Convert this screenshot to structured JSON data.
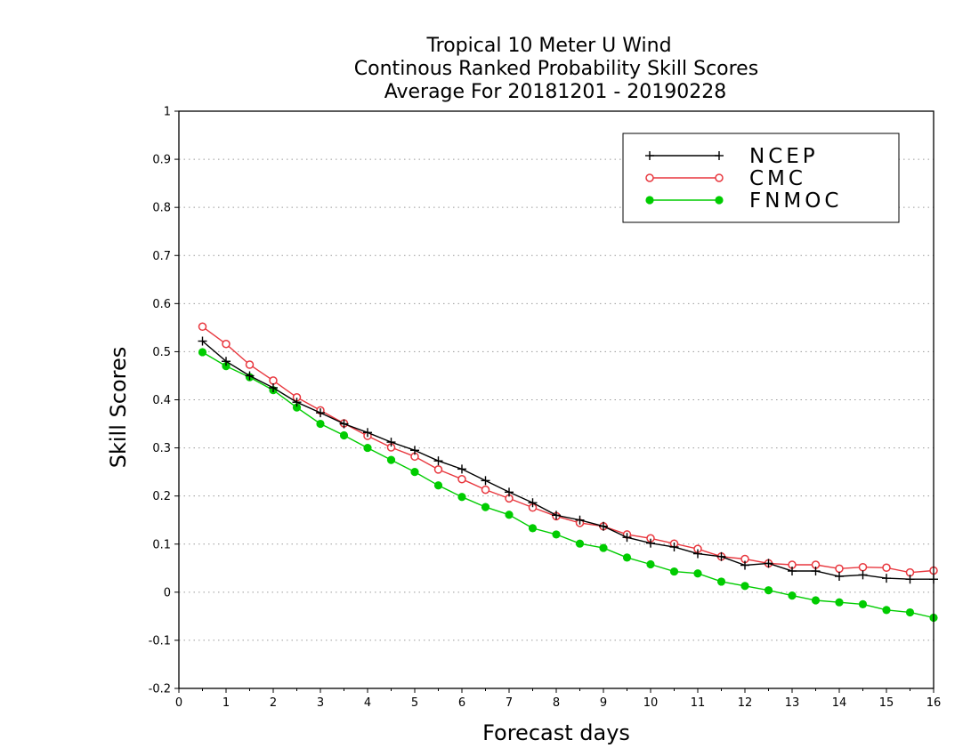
{
  "chart_data": {
    "type": "line",
    "title_lines": [
      "Tropical 10 Meter U Wind",
      "Continous Ranked Probability Skill Scores",
      "Average For 20181201 - 20190228"
    ],
    "xlabel": "Forecast days",
    "ylabel": "Skill Scores",
    "xlim": [
      0,
      16
    ],
    "ylim": [
      -0.2,
      1
    ],
    "x_ticks": [
      "0",
      "1",
      "2",
      "3",
      "4",
      "5",
      "6",
      "7",
      "8",
      "9",
      "10",
      "11",
      "12",
      "13",
      "14",
      "15",
      "16"
    ],
    "y_ticks": [
      "-0.2",
      "-0.1",
      "0",
      "0.1",
      "0.2",
      "0.3",
      "0.4",
      "0.5",
      "0.6",
      "0.7",
      "0.8",
      "0.9",
      "1"
    ],
    "grid": "horizontal-dotted",
    "legend_position": "top-right",
    "x": [
      0.5,
      1,
      1.5,
      2,
      2.5,
      3,
      3.5,
      4,
      4.5,
      5,
      5.5,
      6,
      6.5,
      7,
      7.5,
      8,
      8.5,
      9,
      9.5,
      10,
      10.5,
      11,
      11.5,
      12,
      12.5,
      13,
      13.5,
      14,
      14.5,
      15,
      15.5,
      16
    ],
    "series": [
      {
        "name": "NCEP",
        "color": "#000000",
        "marker": "plus",
        "values": [
          0.522,
          0.48,
          0.45,
          0.425,
          0.395,
          0.373,
          0.35,
          0.332,
          0.312,
          0.295,
          0.273,
          0.256,
          0.232,
          0.208,
          0.186,
          0.16,
          0.15,
          0.137,
          0.114,
          0.102,
          0.094,
          0.08,
          0.074,
          0.056,
          0.06,
          0.044,
          0.044,
          0.033,
          0.036,
          0.029,
          0.027,
          0.027
        ]
      },
      {
        "name": "CMC",
        "color": "#e8373e",
        "marker": "open-circle",
        "values": [
          0.552,
          0.516,
          0.473,
          0.44,
          0.405,
          0.378,
          0.351,
          0.325,
          0.301,
          0.282,
          0.255,
          0.235,
          0.213,
          0.195,
          0.176,
          0.158,
          0.144,
          0.137,
          0.12,
          0.112,
          0.101,
          0.09,
          0.074,
          0.069,
          0.06,
          0.057,
          0.057,
          0.049,
          0.052,
          0.051,
          0.041,
          0.045
        ]
      },
      {
        "name": "FNMOC",
        "color": "#00cc00",
        "marker": "filled-circle",
        "values": [
          0.499,
          0.47,
          0.447,
          0.42,
          0.384,
          0.35,
          0.326,
          0.3,
          0.275,
          0.25,
          0.222,
          0.198,
          0.177,
          0.161,
          0.133,
          0.12,
          0.101,
          0.092,
          0.072,
          0.058,
          0.043,
          0.039,
          0.022,
          0.013,
          0.004,
          -0.007,
          -0.017,
          -0.021,
          -0.025,
          -0.037,
          -0.042,
          -0.053
        ]
      }
    ]
  }
}
